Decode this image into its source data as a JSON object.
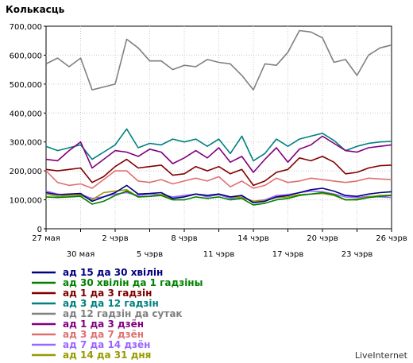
{
  "chart_data": {
    "type": "line",
    "title": "Колькасць",
    "xlabel": "",
    "ylabel": "",
    "ylim": [
      0,
      700000
    ],
    "yticks": [
      "0",
      "100,000",
      "200,000",
      "300,000",
      "400,000",
      "500,000",
      "600,000",
      "700,000"
    ],
    "grid": true,
    "x_tick_labels_top": [
      {
        "index": 0,
        "label": "27 мая"
      },
      {
        "index": 6,
        "label": "2 чэрв"
      },
      {
        "index": 12,
        "label": "8 чэрв"
      },
      {
        "index": 18,
        "label": "14 чэрв"
      },
      {
        "index": 24,
        "label": "20 чэрв"
      },
      {
        "index": 30,
        "label": "26 чэрв"
      }
    ],
    "x_tick_labels_bottom": [
      {
        "index": 3,
        "label": "30 мая"
      },
      {
        "index": 9,
        "label": "5 чэрв"
      },
      {
        "index": 15,
        "label": "11 чэрв"
      },
      {
        "index": 21,
        "label": "17 чэрв"
      },
      {
        "index": 27,
        "label": "23 чэрв"
      }
    ],
    "series": [
      {
        "name": "ад 15 да 30 хвілін",
        "color": "#000080",
        "values": [
          125000,
          118000,
          120000,
          122000,
          95000,
          110000,
          125000,
          150000,
          120000,
          122000,
          125000,
          105000,
          110000,
          120000,
          115000,
          120000,
          110000,
          115000,
          90000,
          95000,
          110000,
          115000,
          125000,
          135000,
          140000,
          130000,
          115000,
          112000,
          120000,
          125000,
          128000
        ]
      },
      {
        "name": "ад 30 хвілін да 1 гадзіны",
        "color": "#008000",
        "values": [
          110000,
          108000,
          110000,
          112000,
          85000,
          95000,
          115000,
          130000,
          110000,
          112000,
          115000,
          100000,
          100000,
          110000,
          105000,
          110000,
          100000,
          105000,
          82000,
          88000,
          100000,
          105000,
          115000,
          120000,
          125000,
          118000,
          100000,
          100000,
          108000,
          112000,
          115000
        ]
      },
      {
        "name": "ад 1 да 3 гадзін",
        "color": "#800000",
        "values": [
          205000,
          200000,
          205000,
          210000,
          160000,
          180000,
          215000,
          240000,
          210000,
          215000,
          220000,
          185000,
          190000,
          215000,
          200000,
          215000,
          190000,
          205000,
          150000,
          165000,
          195000,
          205000,
          245000,
          235000,
          250000,
          230000,
          190000,
          195000,
          210000,
          218000,
          220000
        ]
      },
      {
        "name": "ад 3 да 12 гадзін",
        "color": "#008080",
        "values": [
          285000,
          270000,
          280000,
          290000,
          240000,
          265000,
          290000,
          345000,
          280000,
          295000,
          290000,
          310000,
          300000,
          310000,
          285000,
          310000,
          260000,
          320000,
          235000,
          260000,
          310000,
          285000,
          310000,
          320000,
          330000,
          305000,
          270000,
          285000,
          295000,
          300000,
          302000
        ]
      },
      {
        "name": "ад 12 гадзін да сутак",
        "color": "#808080",
        "values": [
          570000,
          590000,
          560000,
          590000,
          480000,
          490000,
          500000,
          655000,
          625000,
          580000,
          580000,
          550000,
          565000,
          560000,
          585000,
          575000,
          570000,
          530000,
          480000,
          570000,
          565000,
          610000,
          685000,
          680000,
          660000,
          575000,
          585000,
          530000,
          600000,
          625000,
          635000
        ]
      },
      {
        "name": "ад 1 да 3 дзён",
        "color": "#800080",
        "values": [
          240000,
          235000,
          270000,
          300000,
          210000,
          240000,
          270000,
          265000,
          250000,
          275000,
          265000,
          225000,
          245000,
          270000,
          245000,
          280000,
          230000,
          250000,
          195000,
          240000,
          280000,
          230000,
          275000,
          290000,
          320000,
          295000,
          270000,
          265000,
          280000,
          285000,
          290000
        ]
      },
      {
        "name": "ад 3 да 7 дзён",
        "color": "#e07070",
        "values": [
          200000,
          160000,
          150000,
          155000,
          140000,
          170000,
          200000,
          200000,
          165000,
          160000,
          170000,
          155000,
          165000,
          175000,
          165000,
          180000,
          145000,
          165000,
          140000,
          150000,
          175000,
          160000,
          165000,
          175000,
          170000,
          165000,
          160000,
          165000,
          175000,
          172000,
          170000
        ]
      },
      {
        "name": "ад 7 да 14 дзён",
        "color": "#9966ff",
        "values": [
          130000,
          120000,
          115000,
          118000,
          105000,
          110000,
          120000,
          125000,
          115000,
          120000,
          118000,
          110000,
          115000,
          120000,
          110000,
          118000,
          105000,
          110000,
          95000,
          100000,
          115000,
          118000,
          125000,
          130000,
          128000,
          120000,
          110000,
          108000,
          112000,
          110000,
          108000
        ]
      },
      {
        "name": "ад 14 да 31 дня",
        "color": "#999900",
        "values": [
          120000,
          112000,
          115000,
          116000,
          100000,
          125000,
          130000,
          135000,
          110000,
          112000,
          118000,
          105000,
          110000,
          120000,
          115000,
          120000,
          110000,
          108000,
          95000,
          98000,
          108000,
          110000,
          118000,
          120000,
          122000,
          115000,
          100000,
          102000,
          110000,
          115000,
          116000
        ]
      }
    ],
    "legend_position": "bottom-left"
  },
  "brand": "LiveInternet"
}
